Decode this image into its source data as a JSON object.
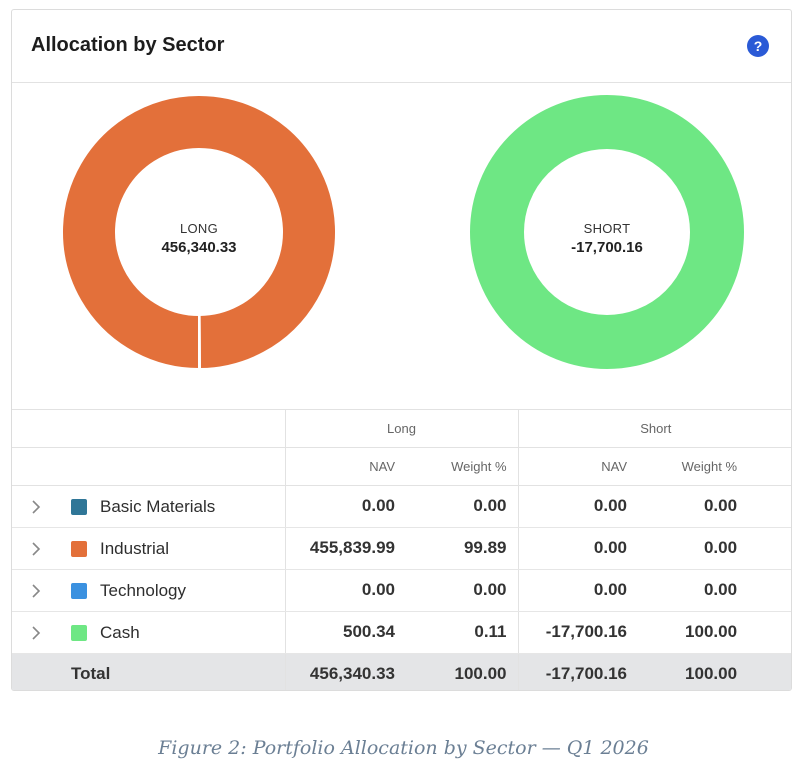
{
  "panel": {
    "title": "Allocation by Sector",
    "help_icon": "help-icon",
    "help_glyph": "?"
  },
  "donuts": {
    "long": {
      "label": "LONG",
      "value": "456,340.33",
      "color": "#e3703a"
    },
    "short": {
      "label": "SHORT",
      "value": "-17,700.16",
      "color": "#6ee784"
    }
  },
  "table": {
    "group_headers": {
      "long": "Long",
      "short": "Short"
    },
    "col_headers": {
      "long_nav": "NAV",
      "long_weight": "Weight %",
      "short_nav": "NAV",
      "short_weight": "Weight %"
    },
    "rows": [
      {
        "name": "Basic Materials",
        "color": "#2f7697",
        "long_nav": "0.00",
        "long_weight": "0.00",
        "short_nav": "0.00",
        "short_weight": "0.00"
      },
      {
        "name": "Industrial",
        "color": "#e3703a",
        "long_nav": "455,839.99",
        "long_weight": "99.89",
        "short_nav": "0.00",
        "short_weight": "0.00"
      },
      {
        "name": "Technology",
        "color": "#3b91e0",
        "long_nav": "0.00",
        "long_weight": "0.00",
        "short_nav": "0.00",
        "short_weight": "0.00"
      },
      {
        "name": "Cash",
        "color": "#6ee784",
        "long_nav": "500.34",
        "long_weight": "0.11",
        "short_nav": "-17,700.16",
        "short_weight": "100.00"
      }
    ],
    "total": {
      "label": "Total",
      "long_nav": "456,340.33",
      "long_weight": "100.00",
      "short_nav": "-17,700.16",
      "short_weight": "100.00"
    }
  },
  "caption": "Figure 2: Portfolio Allocation by Sector — Q1 2026"
}
